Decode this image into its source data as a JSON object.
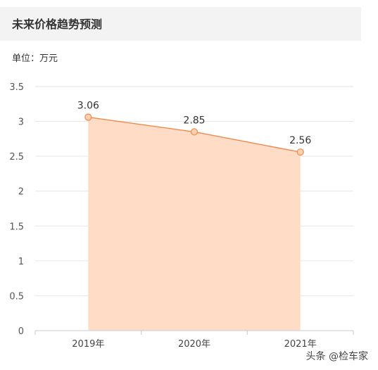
{
  "header": {
    "title": "未来价格趋势预测"
  },
  "unit_label": "单位：万元",
  "watermark": "头条 @检车家",
  "colors": {
    "line": "#f08a4b",
    "area": "#fedcc6",
    "marker_fill": "#fccfae",
    "grid": "#e6e6e6",
    "axis": "#c8cbd3"
  },
  "chart_data": {
    "type": "area",
    "title": "未来价格趋势预测",
    "ylabel": "单位：万元",
    "xlabel": "",
    "categories": [
      "2019年",
      "2020年",
      "2021年"
    ],
    "series": [
      {
        "values": [
          3.06,
          2.85,
          2.56
        ],
        "labels": [
          "3.06",
          "2.85",
          "2.56"
        ]
      }
    ],
    "ylim": [
      0,
      3.5
    ],
    "yticks": [
      0,
      0.5,
      1,
      1.5,
      2,
      2.5,
      3,
      3.5
    ],
    "ytick_labels": [
      "0",
      "0.5",
      "1",
      "1.5",
      "2",
      "2.5",
      "3",
      "3.5"
    ],
    "grid": true,
    "legend": "none"
  }
}
